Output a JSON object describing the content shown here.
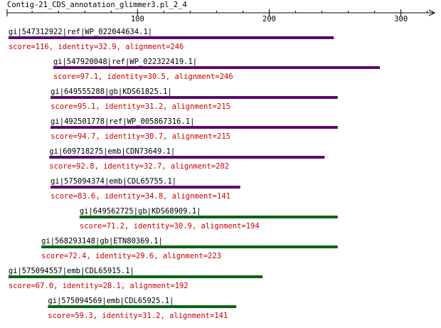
{
  "chart_data": {
    "type": "alignment",
    "title": "Contig-21_CDS_annotation_glimmer3.pl_2_4",
    "xlim": [
      1,
      325
    ],
    "xticks": [
      100,
      200,
      300
    ],
    "xticks_minor": [
      20,
      40,
      60,
      80,
      120,
      140,
      160,
      180,
      220,
      240,
      260,
      280,
      320
    ],
    "hits": [
      {
        "name": "gi|547312922|ref|WP_022044634.1|",
        "label": "score=116, identity=32.9, alignment=246",
        "start": 2,
        "end": 249,
        "color": "#5a0a6e"
      },
      {
        "name": "gi|547920048|ref|WP_022322419.1|",
        "label": "score=97.1, identity=30.5, alignment=246",
        "start": 36,
        "end": 284,
        "color": "#5a0a6e"
      },
      {
        "name": "gi|649555288|gb|KDS61825.1|",
        "label": "score=95.1, identity=31.2, alignment=215",
        "start": 34,
        "end": 252,
        "color": "#5a0a6e"
      },
      {
        "name": "gi|492501778|ref|WP_005867316.1|",
        "label": "score=94.7, identity=30.7, alignment=215",
        "start": 34,
        "end": 252,
        "color": "#5a0a6e"
      },
      {
        "name": "gi|609718275|emb|CDN73649.1|",
        "label": "score=92.8, identity=32.7, alignment=202",
        "start": 33,
        "end": 242,
        "color": "#5a0a6e"
      },
      {
        "name": "gi|575094374|emb|CDL65755.1|",
        "label": "score=83.6, identity=34.8, alignment=141",
        "start": 34,
        "end": 178,
        "color": "#5a0a6e"
      },
      {
        "name": "gi|649562725|gb|KDS68909.1|",
        "label": "score=71.2, identity=30.9, alignment=194",
        "start": 56,
        "end": 252,
        "color": "#0a6414"
      },
      {
        "name": "gi|568293148|gb|ETN80369.1|",
        "label": "score=72.4, identity=29.6, alignment=223",
        "start": 27,
        "end": 252,
        "color": "#0a6414"
      },
      {
        "name": "gi|575094557|emb|CDL65915.1|",
        "label": "score=67.0, identity=28.1, alignment=192",
        "start": 2,
        "end": 195,
        "color": "#0a6414"
      },
      {
        "name": "gi|575094569|emb|CDL65925.1|",
        "label": "score=59.3, identity=31.2, alignment=141",
        "start": 32,
        "end": 175,
        "color": "#0a6414"
      }
    ]
  }
}
